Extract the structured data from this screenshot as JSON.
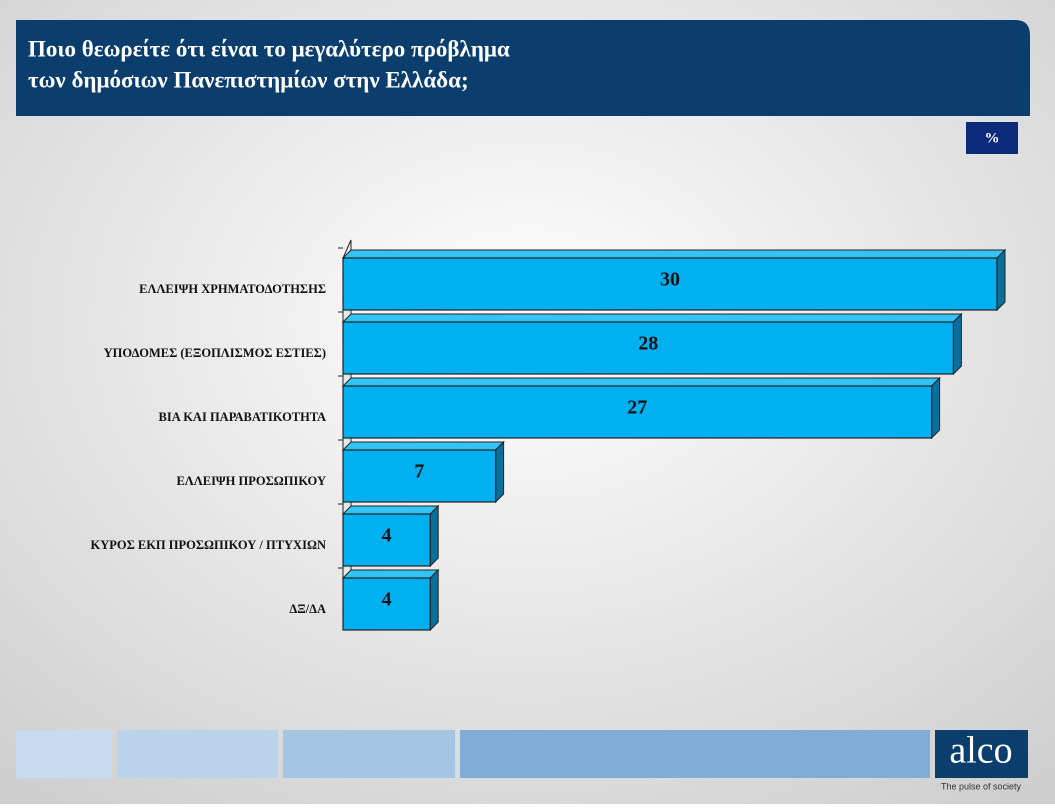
{
  "header": {
    "title_lines": [
      "Ποιο θεωρείτε ότι είναι το μεγαλύτερο πρόβλημα",
      "των δημόσιων Πανεπιστημίων στην Ελλάδα;"
    ],
    "unit_badge": "%"
  },
  "chart_data": {
    "type": "bar",
    "orientation": "horizontal",
    "categories": [
      "ΕΛΛΕΙΨΗ ΧΡΗΜΑΤΟΔΟΤΗΣΗΣ",
      "ΥΠΟΔΟΜΕΣ (ΕΞΟΠΛΙΣΜΟΣ ΕΣΤΙΕΣ)",
      "ΒΙΑ ΚΑΙ ΠΑΡΑΒΑΤΙΚΟΤΗΤΑ",
      "ΕΛΛΕΙΨΗ ΠΡΟΣΩΠΙΚΟΥ",
      "ΚΥΡΟΣ ΕΚΠ ΠΡΟΣΩΠΙΚΟΥ / ΠΤΥΧΙΩΝ",
      "ΔΞ/ΔΑ"
    ],
    "values": [
      30,
      28,
      27,
      7,
      4,
      4
    ],
    "color": "#00b0f0"
  },
  "footer": {
    "logo": "alco",
    "tagline": "The pulse of society"
  }
}
